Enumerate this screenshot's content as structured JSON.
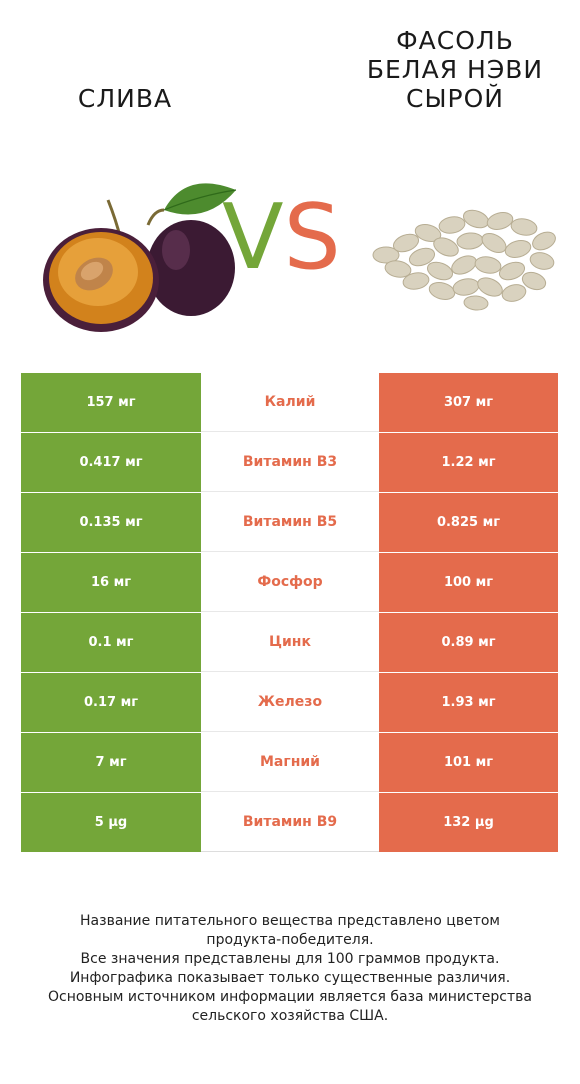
{
  "header": {
    "left_title": "СЛИВА",
    "right_title_lines": [
      "ФАСОЛЬ",
      "БЕЛАЯ НЭВИ",
      "СЫРОЙ"
    ],
    "vs_v": "V",
    "vs_s": "S"
  },
  "colors": {
    "left": "#74a639",
    "right": "#e46b4c"
  },
  "rows": [
    {
      "left": "157 мг",
      "name": "Калий",
      "right": "307 мг",
      "winner": "right"
    },
    {
      "left": "0.417 мг",
      "name": "Витамин B3",
      "right": "1.22 мг",
      "winner": "right"
    },
    {
      "left": "0.135 мг",
      "name": "Витамин B5",
      "right": "0.825 мг",
      "winner": "right"
    },
    {
      "left": "16 мг",
      "name": "Фосфор",
      "right": "100 мг",
      "winner": "right"
    },
    {
      "left": "0.1 мг",
      "name": "Цинк",
      "right": "0.89 мг",
      "winner": "right"
    },
    {
      "left": "0.17 мг",
      "name": "Железо",
      "right": "1.93 мг",
      "winner": "right"
    },
    {
      "left": "7 мг",
      "name": "Магний",
      "right": "101 мг",
      "winner": "right"
    },
    {
      "left": "5 µg",
      "name": "Витамин B9",
      "right": "132 µg",
      "winner": "right"
    }
  ],
  "footer": [
    "Название питательного вещества представлено цветом",
    "продукта-победителя.",
    "Все значения представлены для 100 граммов продукта.",
    "Инфографика показывает только существенные различия.",
    "Основным источником информации является база министерства",
    "сельского хозяйства США."
  ]
}
